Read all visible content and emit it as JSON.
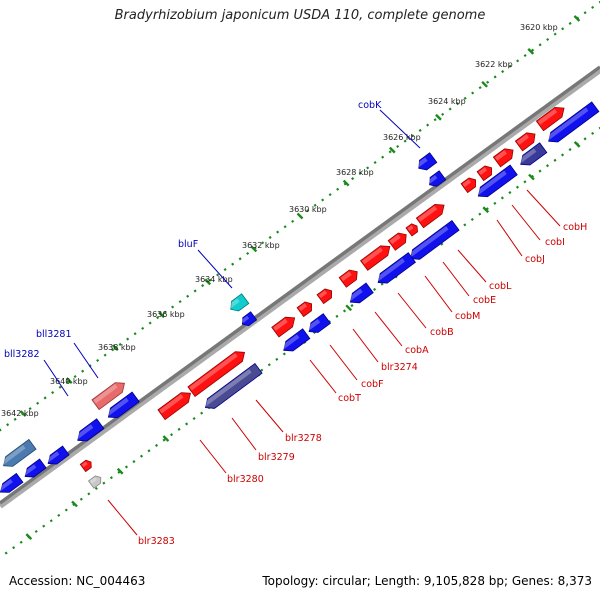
{
  "title": "Bradyrhizobium japonicum USDA 110, complete genome",
  "footer": {
    "accession": "Accession: NC_004463",
    "summary": "Topology: circular; Length: 9,105,828 bp; Genes: 8,373"
  },
  "colors": {
    "forward": "#ff1111",
    "reverse": "#1111ee",
    "reverse_dark": "#444488",
    "label_forward": "#cc0000",
    "label_reverse": "#0000bb",
    "tick": "#1a8a1a",
    "backbone": "#777777"
  },
  "ticks": [
    "3620 kbp",
    "3622 kbp",
    "3624 kbp",
    "3626 kbp",
    "3628 kbp",
    "3630 kbp",
    "3632 kbp",
    "3634 kbp",
    "3636 kbp",
    "3638 kbp",
    "3640 kbp",
    "3642 kbp"
  ],
  "genes": [
    {
      "id": "cobH",
      "label": "cobH",
      "strand": "forward"
    },
    {
      "id": "cobI",
      "label": "cobI",
      "strand": "forward"
    },
    {
      "id": "cobJ",
      "label": "cobJ",
      "strand": "forward"
    },
    {
      "id": "cobL",
      "label": "cobL",
      "strand": "forward"
    },
    {
      "id": "cobE",
      "label": "cobE",
      "strand": "forward"
    },
    {
      "id": "cobM",
      "label": "cobM",
      "strand": "forward"
    },
    {
      "id": "cobB",
      "label": "cobB",
      "strand": "forward"
    },
    {
      "id": "cobA",
      "label": "cobA",
      "strand": "forward"
    },
    {
      "id": "blr3274",
      "label": "blr3274",
      "strand": "forward"
    },
    {
      "id": "cobF",
      "label": "cobF",
      "strand": "forward"
    },
    {
      "id": "cobT",
      "label": "cobT",
      "strand": "forward"
    },
    {
      "id": "blr3278",
      "label": "blr3278",
      "strand": "forward"
    },
    {
      "id": "blr3279",
      "label": "blr3279",
      "strand": "forward"
    },
    {
      "id": "blr3280",
      "label": "blr3280",
      "strand": "forward"
    },
    {
      "id": "blr3283",
      "label": "blr3283",
      "strand": "forward"
    },
    {
      "id": "cobK",
      "label": "cobK",
      "strand": "reverse"
    },
    {
      "id": "bluF",
      "label": "bluF",
      "strand": "reverse"
    },
    {
      "id": "bll3281",
      "label": "bll3281",
      "strand": "reverse"
    },
    {
      "id": "bll3282",
      "label": "bll3282",
      "strand": "reverse"
    }
  ]
}
